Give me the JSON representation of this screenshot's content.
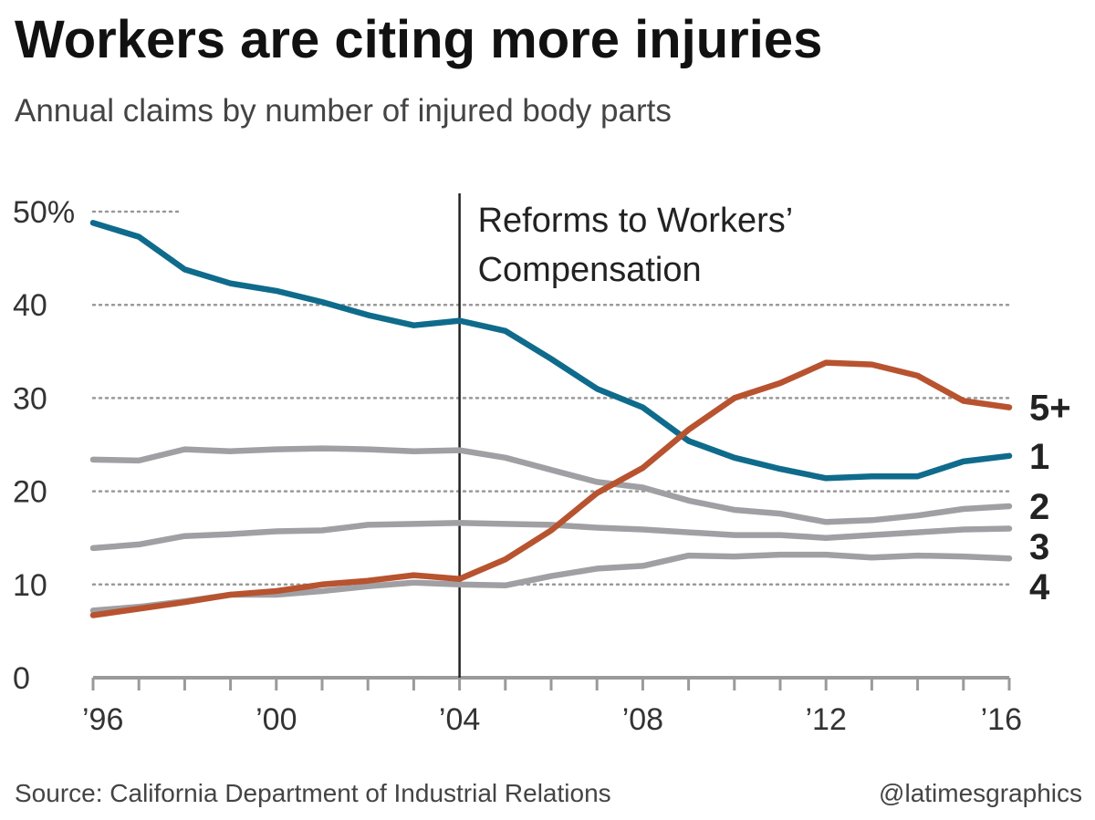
{
  "header": {
    "title": "Workers are citing more injuries",
    "subtitle": "Annual claims by number of injured body parts"
  },
  "footer": {
    "source": "Source: California Department of Industrial Relations",
    "credit": "@latimesgraphics"
  },
  "colors": {
    "one": "#0f6b8c",
    "five_plus": "#b8532f",
    "others": "#a0a0a4",
    "grid": "#999999",
    "axis": "#9a9a9a",
    "annotation_line": "#222222"
  },
  "chart_data": {
    "type": "line",
    "x": [
      1996,
      1997,
      1998,
      1999,
      2000,
      2001,
      2002,
      2003,
      2004,
      2005,
      2006,
      2007,
      2008,
      2009,
      2010,
      2011,
      2012,
      2013,
      2014,
      2015,
      2016
    ],
    "xticks": [
      1996,
      2000,
      2004,
      2008,
      2012,
      2016
    ],
    "xtick_labels": [
      "’96",
      "’00",
      "’04",
      "’08",
      "’12",
      "’16"
    ],
    "xlim": [
      1996,
      2016
    ],
    "ylim": [
      0,
      50
    ],
    "yticks": [
      0,
      10,
      20,
      30,
      40,
      50
    ],
    "ytick_labels": [
      "0",
      "10",
      "20",
      "30",
      "40",
      "50%"
    ],
    "grid": "horizontal dotted",
    "series": [
      {
        "name": "1",
        "color_key": "one",
        "values": [
          48.8,
          47.3,
          43.8,
          42.3,
          41.5,
          40.3,
          38.9,
          37.8,
          38.3,
          37.2,
          34.2,
          31.0,
          29.0,
          25.4,
          23.6,
          22.4,
          21.4,
          21.6,
          21.6,
          23.2,
          23.8
        ]
      },
      {
        "name": "2",
        "color_key": "others",
        "values": [
          23.4,
          23.3,
          24.5,
          24.3,
          24.5,
          24.6,
          24.5,
          24.3,
          24.4,
          23.6,
          22.3,
          21.0,
          20.4,
          19.0,
          18.0,
          17.6,
          16.7,
          16.9,
          17.4,
          18.1,
          18.4
        ]
      },
      {
        "name": "3",
        "color_key": "others",
        "values": [
          13.9,
          14.3,
          15.2,
          15.4,
          15.7,
          15.8,
          16.4,
          16.5,
          16.6,
          16.5,
          16.4,
          16.1,
          15.9,
          15.6,
          15.3,
          15.3,
          15.0,
          15.3,
          15.6,
          15.9,
          16.0
        ]
      },
      {
        "name": "4",
        "color_key": "others",
        "values": [
          7.2,
          7.6,
          8.2,
          8.9,
          8.9,
          9.3,
          9.8,
          10.2,
          10.0,
          9.9,
          10.9,
          11.7,
          12.0,
          13.1,
          13.0,
          13.2,
          13.2,
          12.9,
          13.1,
          13.0,
          12.8
        ]
      },
      {
        "name": "5+",
        "color_key": "five_plus",
        "values": [
          6.7,
          7.4,
          8.1,
          8.9,
          9.3,
          10.0,
          10.4,
          11.0,
          10.6,
          12.7,
          15.8,
          19.8,
          22.5,
          26.6,
          30.0,
          31.6,
          33.8,
          33.6,
          32.4,
          29.7,
          29.0
        ]
      }
    ],
    "annotation": {
      "x": 2004,
      "lines": [
        "Reforms to Workers’",
        "Compensation"
      ]
    }
  }
}
